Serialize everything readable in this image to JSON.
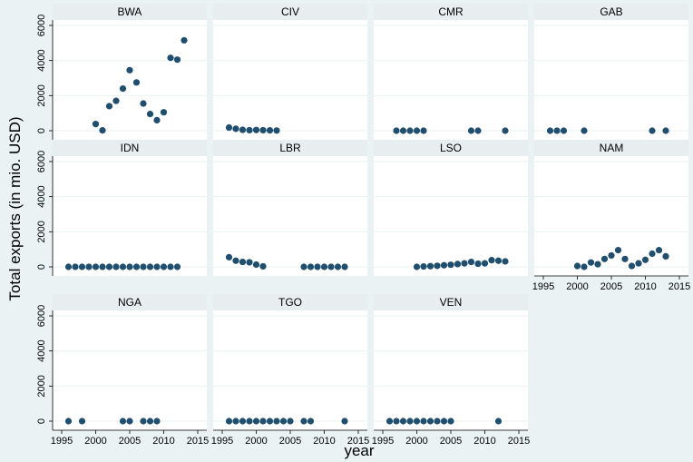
{
  "chart_data": {
    "type": "scatter",
    "xlabel": "year",
    "ylabel": "Total exports (in mio. USD)",
    "xlim": [
      1995,
      2015
    ],
    "ylim": [
      0,
      6000
    ],
    "x_ticks": [
      "1995",
      "2000",
      "2005",
      "2010",
      "2015"
    ],
    "y_ticks": [
      "0",
      "2000",
      "4000",
      "6000"
    ],
    "grid": true,
    "marker_color": "#1f4e6e",
    "background_color": "#eaf2f3",
    "panels": [
      {
        "name": "BWA",
        "x": [
          2000,
          2001,
          2002,
          2003,
          2004,
          2005,
          2006,
          2007,
          2008,
          2009,
          2010,
          2011,
          2012,
          2013
        ],
        "y": [
          380,
          20,
          1400,
          1700,
          2400,
          3450,
          2750,
          1550,
          950,
          600,
          1050,
          4150,
          4050,
          5150
        ]
      },
      {
        "name": "CIV",
        "x": [
          1996,
          1997,
          1998,
          1999,
          2000,
          2001,
          2002,
          2003
        ],
        "y": [
          180,
          110,
          50,
          30,
          40,
          30,
          20,
          10
        ]
      },
      {
        "name": "CMR",
        "x": [
          1997,
          1998,
          1999,
          2000,
          2001,
          2008,
          2009,
          2013
        ],
        "y": [
          0,
          0,
          0,
          0,
          0,
          0,
          0,
          0
        ]
      },
      {
        "name": "GAB",
        "x": [
          1996,
          1997,
          1998,
          2001,
          2011,
          2013
        ],
        "y": [
          0,
          0,
          0,
          0,
          0,
          0
        ]
      },
      {
        "name": "IDN",
        "x": [
          1996,
          1997,
          1998,
          1999,
          2000,
          2001,
          2002,
          2003,
          2004,
          2005,
          2006,
          2007,
          2008,
          2009,
          2010,
          2011,
          2012
        ],
        "y": [
          0,
          0,
          0,
          0,
          0,
          0,
          0,
          0,
          0,
          0,
          0,
          0,
          0,
          0,
          0,
          0,
          0
        ]
      },
      {
        "name": "LBR",
        "x": [
          1996,
          1997,
          1998,
          1999,
          2000,
          2001,
          2007,
          2008,
          2009,
          2010,
          2011,
          2012,
          2013
        ],
        "y": [
          550,
          350,
          280,
          260,
          130,
          30,
          0,
          0,
          0,
          0,
          0,
          0,
          0
        ]
      },
      {
        "name": "LSO",
        "x": [
          2000,
          2001,
          2002,
          2003,
          2004,
          2005,
          2006,
          2007,
          2008,
          2009,
          2010,
          2011,
          2012,
          2013
        ],
        "y": [
          0,
          20,
          40,
          60,
          90,
          120,
          160,
          200,
          280,
          180,
          200,
          380,
          350,
          310
        ]
      },
      {
        "name": "NAM",
        "x": [
          2000,
          2001,
          2002,
          2003,
          2004,
          2005,
          2006,
          2007,
          2008,
          2009,
          2010,
          2011,
          2012,
          2013
        ],
        "y": [
          50,
          0,
          250,
          150,
          450,
          650,
          950,
          450,
          50,
          200,
          400,
          750,
          950,
          600
        ]
      },
      {
        "name": "NGA",
        "x": [
          1996,
          1998,
          2004,
          2005,
          2007,
          2008,
          2009
        ],
        "y": [
          0,
          0,
          0,
          0,
          0,
          0,
          0
        ]
      },
      {
        "name": "TGO",
        "x": [
          1996,
          1997,
          1998,
          1999,
          2000,
          2001,
          2002,
          2003,
          2004,
          2005,
          2007,
          2008,
          2013
        ],
        "y": [
          0,
          0,
          0,
          0,
          0,
          0,
          0,
          0,
          0,
          0,
          0,
          0,
          0
        ]
      },
      {
        "name": "VEN",
        "x": [
          1996,
          1997,
          1998,
          1999,
          2000,
          2001,
          2002,
          2003,
          2004,
          2005,
          2012
        ],
        "y": [
          0,
          0,
          0,
          0,
          0,
          0,
          0,
          0,
          0,
          0,
          0
        ]
      }
    ]
  }
}
